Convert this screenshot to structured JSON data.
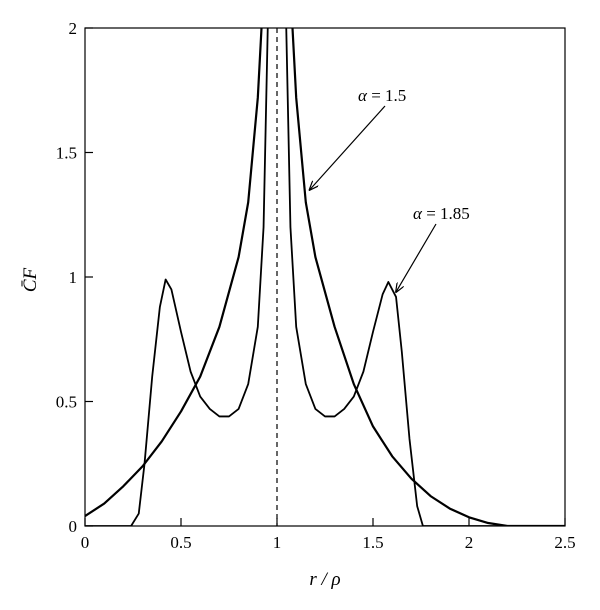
{
  "chart_data": {
    "type": "line",
    "xlabel": "r / ρ",
    "ylabel": "C̄F",
    "xlim": [
      0,
      2.5
    ],
    "ylim": [
      0,
      2
    ],
    "grid": false,
    "x_ticks": [
      0,
      0.5,
      1,
      1.5,
      2,
      2.5
    ],
    "x_tick_labels": [
      "0",
      "0.5",
      "1",
      "1.5",
      "2",
      "2.5"
    ],
    "y_ticks": [
      0,
      0.5,
      1,
      1.5,
      2
    ],
    "y_tick_labels": [
      "0",
      "0.5",
      "1",
      "1.5",
      "2"
    ],
    "vertical_reference_line": {
      "x": 1,
      "style": "dashed"
    },
    "series": [
      {
        "name": "α = 1.5",
        "points": [
          [
            0.0,
            0.04
          ],
          [
            0.1,
            0.09
          ],
          [
            0.2,
            0.16
          ],
          [
            0.3,
            0.24
          ],
          [
            0.4,
            0.34
          ],
          [
            0.5,
            0.46
          ],
          [
            0.6,
            0.6
          ],
          [
            0.7,
            0.8
          ],
          [
            0.8,
            1.08
          ],
          [
            0.85,
            1.3
          ],
          [
            0.9,
            1.72
          ],
          [
            0.94,
            2.3
          ],
          null,
          [
            1.06,
            2.3
          ],
          [
            1.1,
            1.72
          ],
          [
            1.15,
            1.3
          ],
          [
            1.2,
            1.08
          ],
          [
            1.3,
            0.8
          ],
          [
            1.4,
            0.57
          ],
          [
            1.5,
            0.4
          ],
          [
            1.6,
            0.28
          ],
          [
            1.7,
            0.19
          ],
          [
            1.8,
            0.12
          ],
          [
            1.9,
            0.07
          ],
          [
            2.0,
            0.035
          ],
          [
            2.1,
            0.012
          ],
          [
            2.2,
            0.0
          ],
          [
            2.5,
            0.0
          ]
        ]
      },
      {
        "name": "α = 1.85",
        "points": [
          [
            0.0,
            0.0
          ],
          [
            0.24,
            0.0
          ],
          [
            0.28,
            0.05
          ],
          [
            0.31,
            0.25
          ],
          [
            0.35,
            0.6
          ],
          [
            0.39,
            0.88
          ],
          [
            0.42,
            0.99
          ],
          [
            0.45,
            0.95
          ],
          [
            0.5,
            0.78
          ],
          [
            0.55,
            0.62
          ],
          [
            0.6,
            0.52
          ],
          [
            0.65,
            0.47
          ],
          [
            0.7,
            0.44
          ],
          [
            0.75,
            0.44
          ],
          [
            0.8,
            0.47
          ],
          [
            0.85,
            0.57
          ],
          [
            0.9,
            0.8
          ],
          [
            0.93,
            1.2
          ],
          [
            0.96,
            2.3
          ],
          null,
          [
            1.04,
            2.3
          ],
          [
            1.07,
            1.2
          ],
          [
            1.1,
            0.8
          ],
          [
            1.15,
            0.57
          ],
          [
            1.2,
            0.47
          ],
          [
            1.25,
            0.44
          ],
          [
            1.3,
            0.44
          ],
          [
            1.35,
            0.47
          ],
          [
            1.4,
            0.52
          ],
          [
            1.45,
            0.62
          ],
          [
            1.5,
            0.78
          ],
          [
            1.55,
            0.93
          ],
          [
            1.58,
            0.98
          ],
          [
            1.62,
            0.92
          ],
          [
            1.65,
            0.7
          ],
          [
            1.69,
            0.35
          ],
          [
            1.73,
            0.08
          ],
          [
            1.76,
            0.0
          ],
          [
            2.5,
            0.0
          ]
        ]
      }
    ],
    "annotations": [
      {
        "text_name": "α",
        "text_value": " = 1.5",
        "target": [
          1.17,
          1.35
        ]
      },
      {
        "text_name": "α",
        "text_value": " = 1.85",
        "target": [
          1.62,
          0.94
        ]
      }
    ]
  }
}
